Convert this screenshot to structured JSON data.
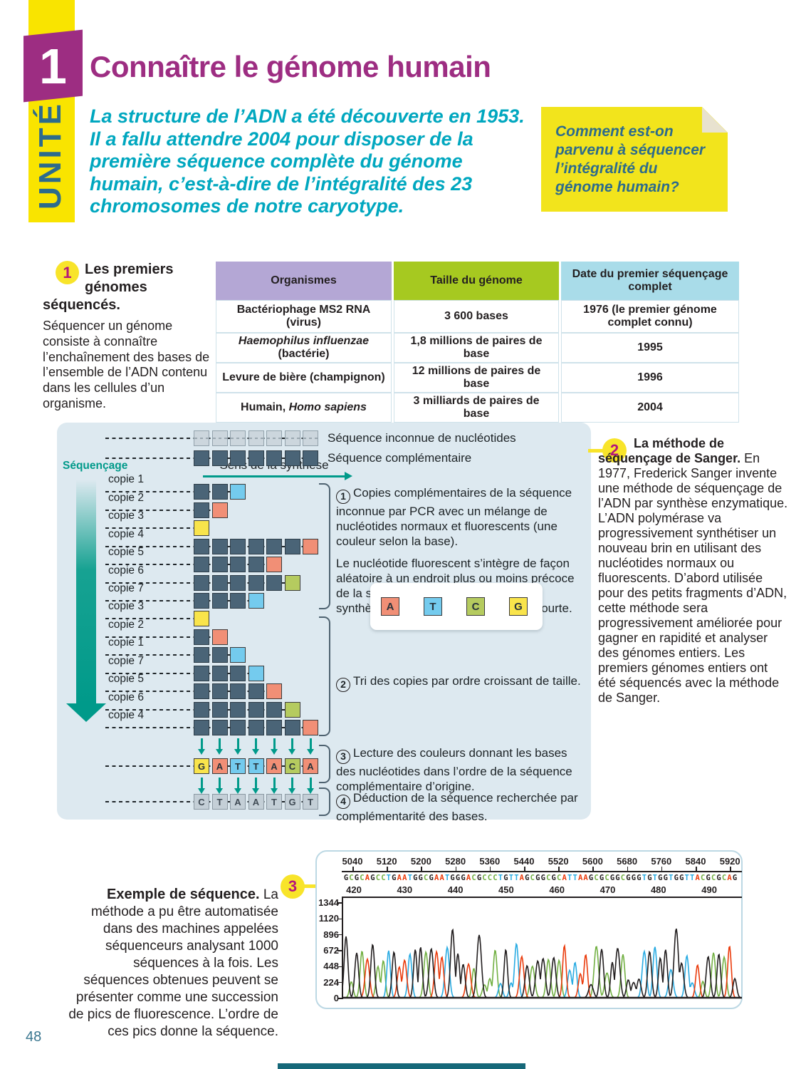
{
  "page": {
    "number": "48"
  },
  "unit": {
    "banner_label": "UNITÉ",
    "number": "1",
    "title": "Connaître le génome humain",
    "intro": "La structure de l’ADN a été découverte en 1953. Il a fallu attendre 2004 pour disposer de la première séquence complète du génome humain, c’est-à-dire de l’intégralité des 23 chromosomes de notre caryotype.",
    "sticky_note": "Comment est-on parvenu à séquencer l’intégralité du génome humain?"
  },
  "section1": {
    "number": "1",
    "heading": "Les premiers génomes séquencés.",
    "body": "Séquencer un génome consiste à connaître l’enchaînement des bases de l’ensemble de l’ADN contenu dans les cellules d’un organisme.",
    "table": {
      "headers": [
        "Organismes",
        "Taille du génome",
        "Date du premier séquençage complet"
      ],
      "header_colors": [
        "#b4a7d5",
        "#a6c920",
        "#a9dce9"
      ],
      "rows": [
        {
          "org_pre": "Bactériophage MS2 RNA (virus)",
          "org_it": "",
          "org_post": "",
          "taille": "3 600 bases",
          "date": "1976 (le premier génome complet connu)"
        },
        {
          "org_pre": "",
          "org_it": "Haemophilus influenzae",
          "org_post": " (bactérie)",
          "taille": "1,8 millions de paires de base",
          "date": "1995"
        },
        {
          "org_pre": "Levure de bière (champignon)",
          "org_it": "",
          "org_post": "",
          "taille": "12 millions de paires de base",
          "date": "1996"
        },
        {
          "org_pre": "Humain, ",
          "org_it": "Homo sapiens",
          "org_post": "",
          "taille": "3 milliards de paires de base",
          "date": "2004"
        }
      ]
    }
  },
  "diagram": {
    "sequencage_label": "Séquençage",
    "sens_label": "Sens de la synthèse",
    "top_rows": [
      {
        "label": "Séquence inconnue de nucléotides",
        "style": "unknown",
        "count": 7
      },
      {
        "label": "Séquence complémentaire",
        "style": "dark",
        "count": 7
      }
    ],
    "copies_group1": [
      {
        "label": "copie 1",
        "dark": 2,
        "end": "T"
      },
      {
        "label": "copie 2",
        "dark": 1,
        "end": "A"
      },
      {
        "label": "copie 3",
        "dark": 0,
        "end": "G"
      },
      {
        "label": "copie 4",
        "dark": 6,
        "end": "A"
      },
      {
        "label": "copie 5",
        "dark": 4,
        "end": "A"
      },
      {
        "label": "copie 6",
        "dark": 5,
        "end": "C"
      },
      {
        "label": "copie 7",
        "dark": 3,
        "end": "T"
      }
    ],
    "copies_group2": [
      {
        "label": "copie 3",
        "dark": 0,
        "end": "G"
      },
      {
        "label": "copie 2",
        "dark": 1,
        "end": "A"
      },
      {
        "label": "copie 1",
        "dark": 2,
        "end": "T"
      },
      {
        "label": "copie 7",
        "dark": 3,
        "end": "T"
      },
      {
        "label": "copie 5",
        "dark": 4,
        "end": "A"
      },
      {
        "label": "copie 6",
        "dark": 5,
        "end": "C"
      },
      {
        "label": "copie 4",
        "dark": 6,
        "end": "A"
      }
    ],
    "legend": [
      "A",
      "T",
      "C",
      "G"
    ],
    "base_colors": {
      "A": "#f18f76",
      "T": "#74cbee",
      "C": "#b5cb5f",
      "G": "#f9e44b"
    },
    "read_sequence": [
      "G",
      "A",
      "T",
      "T",
      "A",
      "C",
      "A"
    ],
    "deduced_sequence": [
      "C",
      "T",
      "A",
      "A",
      "T",
      "G",
      "T"
    ],
    "steps": [
      {
        "num": "1",
        "text": "Copies complémentaires de la séquence inconnue par PCR avec un mélange de nucléotides normaux et fluorescents (une couleur selon la base)."
      },
      {
        "num": "",
        "text": "Le nucléotide fluorescent s’intègre de façon aléatoire à un endroit plus ou moins précoce de la séquence. Lorsqu’il est inséré, la synthèse s’arrête et la copie est plus courte."
      },
      {
        "num": "2",
        "text": "Tri des copies par ordre croissant de taille."
      },
      {
        "num": "3",
        "text": "Lecture des couleurs donnant les bases des nucléotides dans l’ordre de la séquence complémentaire d’origine."
      },
      {
        "num": "4",
        "text": "Déduction de la séquence recherchée par complémentarité des bases."
      }
    ]
  },
  "section2": {
    "number": "2",
    "heading": "La méthode de séquençage de Sanger.",
    "body": "En 1977, Frederick Sanger invente une méthode de séquençage de l’ADN par synthèse enzymatique. L’ADN polymérase va progressivement synthétiser un nouveau brin en utilisant des nucléotides normaux ou fluorescents. D’abord utilisée pour des petits fragments d’ADN, cette méthode sera progressivement améliorée pour gagner en rapidité et analyser des génomes entiers. Les premiers génomes entiers ont été séquencés avec la méthode de Sanger."
  },
  "section3": {
    "number": "3",
    "heading": "Exemple de séquence.",
    "body": "La méthode a pu être automatisée dans des machines appelées séquenceurs analysant 1000 séquences à la fois. Les séquences obtenues peuvent se présenter comme une succession de pics de fluorescence. L’ordre de ces pics donne la séquence."
  },
  "chart_data": {
    "type": "area",
    "description": "Chromatogramme de séquençage (pics de fluorescence)",
    "top_axis_ticks": [
      5040,
      5120,
      5200,
      5280,
      5360,
      5440,
      5520,
      5600,
      5680,
      5760,
      5840,
      5920
    ],
    "sequence": "GCGCAGCCTGAATGGCGAATGGGACGCCCTGTTAGCGGCGCATTAAGCGCGGCGGGTGTGGTGGTTACGCGCAG",
    "position_ticks": [
      420,
      430,
      440,
      450,
      460,
      470,
      480,
      490
    ],
    "y_ticks": [
      0,
      224,
      448,
      672,
      896,
      1120,
      1344
    ],
    "ylim": [
      0,
      1450
    ],
    "peak_height_range": [
      160,
      1030
    ],
    "base_colors": {
      "G": "#231f20",
      "C": "#72b043",
      "A": "#ea3b0c",
      "T": "#29abe2"
    },
    "legend_position": "none",
    "grid": false
  }
}
